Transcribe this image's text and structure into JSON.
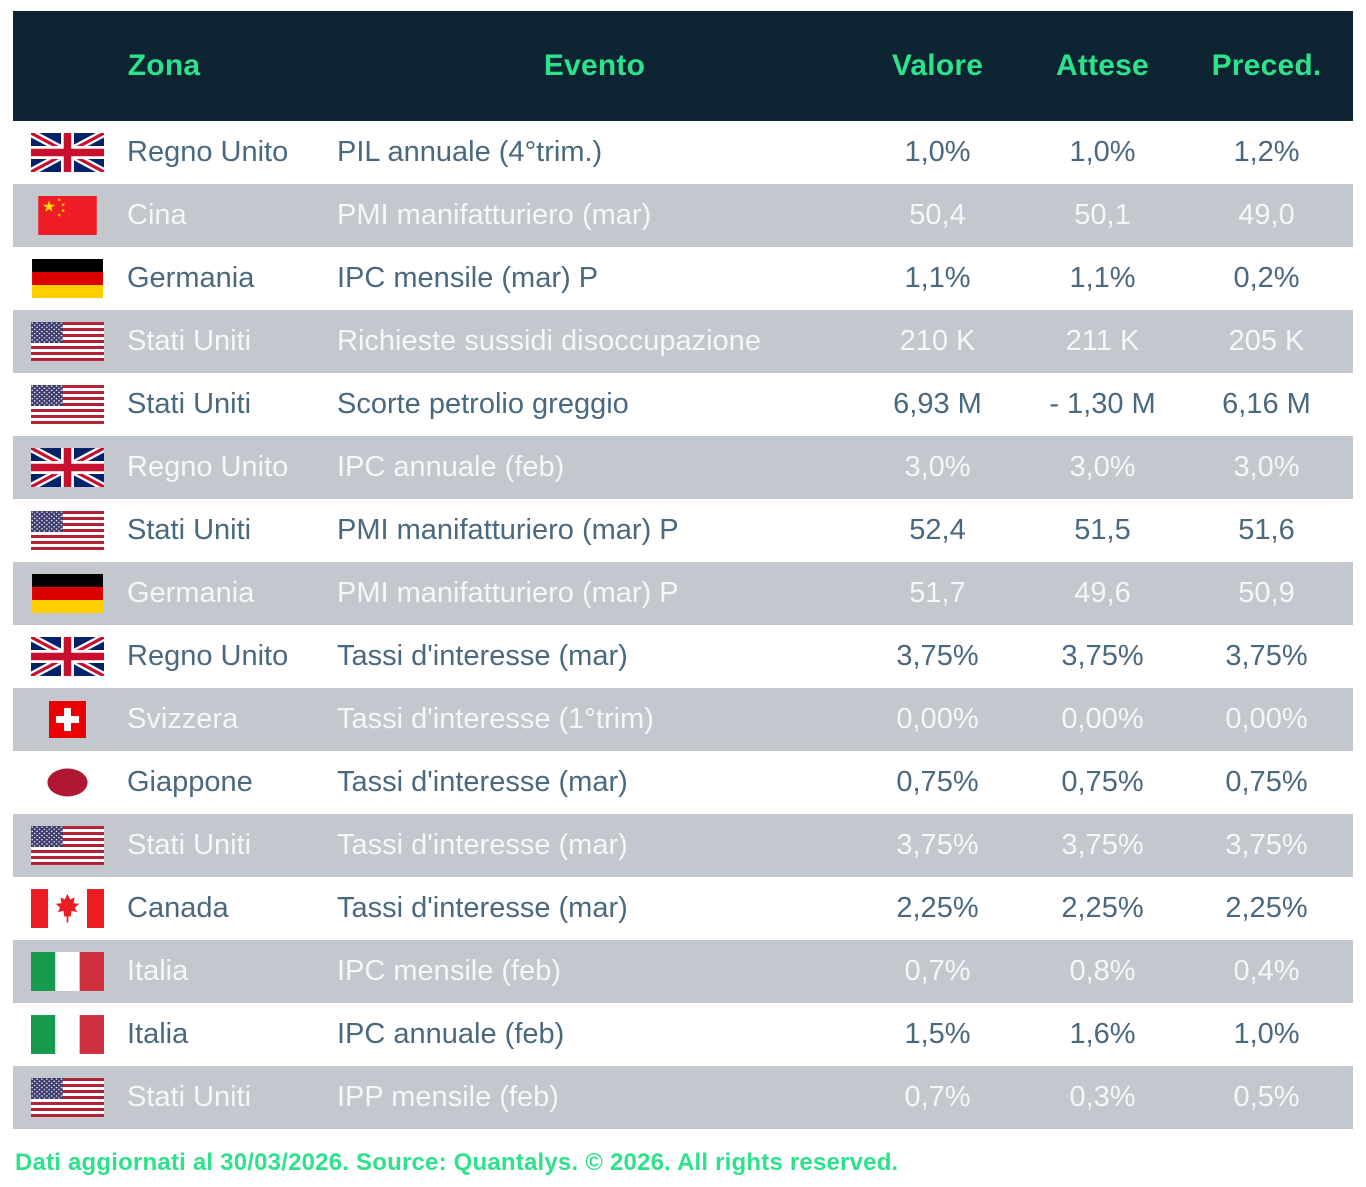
{
  "chart_data": {
    "type": "table",
    "title": "",
    "columns": [
      "Zona",
      "Evento",
      "Valore",
      "Attese",
      "Preced."
    ],
    "rows": [
      {
        "flag": "uk",
        "zone": "Regno Unito",
        "event": "PIL annuale (4°trim.)",
        "value": "1,0%",
        "expected": "1,0%",
        "previous": "1,2%"
      },
      {
        "flag": "china",
        "zone": "Cina",
        "event": "PMI manifatturiero (mar)",
        "value": "50,4",
        "expected": "50,1",
        "previous": "49,0"
      },
      {
        "flag": "germany",
        "zone": "Germania",
        "event": "IPC mensile (mar) P",
        "value": "1,1%",
        "expected": "1,1%",
        "previous": "0,2%"
      },
      {
        "flag": "usa",
        "zone": "Stati Uniti",
        "event": "Richieste sussidi disoccupazione",
        "value": "210 K",
        "expected": "211 K",
        "previous": "205 K"
      },
      {
        "flag": "usa",
        "zone": "Stati Uniti",
        "event": "Scorte petrolio greggio",
        "value": "6,93 M",
        "expected": "- 1,30 M",
        "previous": "6,16 M"
      },
      {
        "flag": "uk",
        "zone": "Regno Unito",
        "event": "IPC annuale (feb)",
        "value": "3,0%",
        "expected": "3,0%",
        "previous": "3,0%"
      },
      {
        "flag": "usa",
        "zone": "Stati Uniti",
        "event": "PMI manifatturiero (mar) P",
        "value": "52,4",
        "expected": "51,5",
        "previous": "51,6"
      },
      {
        "flag": "germany",
        "zone": "Germania",
        "event": "PMI manifatturiero (mar) P",
        "value": "51,7",
        "expected": "49,6",
        "previous": "50,9"
      },
      {
        "flag": "uk",
        "zone": "Regno Unito",
        "event": "Tassi d'interesse (mar)",
        "value": "3,75%",
        "expected": "3,75%",
        "previous": "3,75%"
      },
      {
        "flag": "switzerland",
        "zone": "Svizzera",
        "event": "Tassi d'interesse (1°trim)",
        "value": "0,00%",
        "expected": "0,00%",
        "previous": "0,00%"
      },
      {
        "flag": "japan",
        "zone": "Giappone",
        "event": "Tassi d'interesse (mar)",
        "value": "0,75%",
        "expected": "0,75%",
        "previous": "0,75%"
      },
      {
        "flag": "usa",
        "zone": "Stati Uniti",
        "event": "Tassi d'interesse (mar)",
        "value": "3,75%",
        "expected": "3,75%",
        "previous": "3,75%"
      },
      {
        "flag": "canada",
        "zone": "Canada",
        "event": "Tassi d'interesse (mar)",
        "value": "2,25%",
        "expected": "2,25%",
        "previous": "2,25%"
      },
      {
        "flag": "italy",
        "zone": "Italia",
        "event": "IPC mensile (feb)",
        "value": "0,7%",
        "expected": "0,8%",
        "previous": "0,4%"
      },
      {
        "flag": "italy",
        "zone": "Italia",
        "event": "IPC annuale (feb)",
        "value": "1,5%",
        "expected": "1,6%",
        "previous": "1,0%"
      },
      {
        "flag": "usa",
        "zone": "Stati Uniti",
        "event": "IPP mensile (feb)",
        "value": "0,7%",
        "expected": "0,3%",
        "previous": "0,5%"
      }
    ],
    "layout": {
      "grid": "off",
      "row_striping": "white / gray alternating",
      "header_position": "top"
    }
  },
  "footer": {
    "text": "Dati aggiornati al 30/03/2026. Source: Quantalys. © 2026. All rights reserved."
  },
  "colors": {
    "header_bg": "#0d2433",
    "accent_green": "#2ee28b",
    "row_alt_bg": "#c3c8ce",
    "row_text": "#4a697f",
    "row_alt_text": "#f4f6f7"
  },
  "icons": {
    "uk": "uk-flag-icon",
    "china": "china-flag-icon",
    "germany": "germany-flag-icon",
    "usa": "usa-flag-icon",
    "switzerland": "switzerland-flag-icon",
    "japan": "japan-flag-icon",
    "canada": "canada-flag-icon",
    "italy": "italy-flag-icon"
  }
}
